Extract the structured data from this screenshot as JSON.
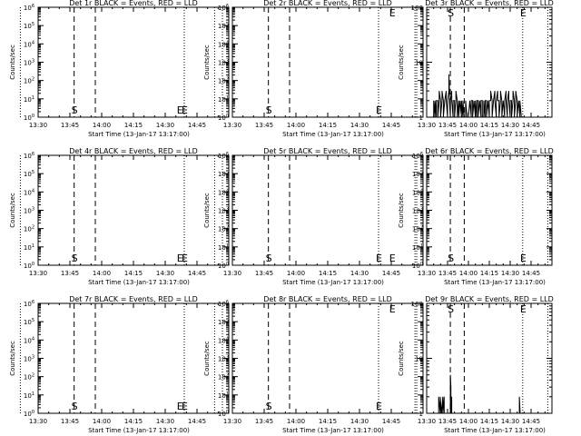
{
  "figure": {
    "background": "#ffffff",
    "foreground": "#000000"
  },
  "chart_data": [
    {
      "type": "line",
      "title": "Det 1r BLACK = Events, RED = LLD",
      "ylabel": "Counts/sec",
      "xlabel": "Start Time (13-Jan-17 13:17:00)",
      "yscale": "log",
      "ylim": [
        1,
        1000000
      ],
      "ytick_labels": [
        "10^0",
        "10^1",
        "10^2",
        "10^3",
        "10^4",
        "10^5",
        "10^6"
      ],
      "xlim_min": [
        13,
        58
      ],
      "xtick_min": [
        30,
        37.5,
        45,
        52.5
      ],
      "xtick_labels": [
        "13:30",
        "13:45",
        "14:00",
        "14:15",
        "14:30",
        "14:45"
      ],
      "dotted_x": [
        8.8,
        47.5,
        56.5
      ],
      "dashed_x": [
        21.5,
        26.5
      ],
      "markers": [
        {
          "text": "E",
          "x": 0.5
        },
        {
          "text": "S",
          "x": 21.5
        },
        {
          "text": "E",
          "x": 47.5
        }
      ],
      "series": []
    },
    {
      "type": "line",
      "title": "Det 2r BLACK = Events, RED = LLD",
      "ylabel": "Counts/sec",
      "xlabel": "Start Time (13-Jan-17 13:17:00)",
      "yscale": "log",
      "ylim": [
        1,
        1000000
      ],
      "ytick_labels": [
        "10^0",
        "10^1",
        "10^2",
        "10^3",
        "10^4",
        "10^5",
        "10^6"
      ],
      "xlim_min": [
        13,
        58
      ],
      "xtick_min": [
        30,
        37.5,
        45,
        52.5
      ],
      "xtick_labels": [
        "13:30",
        "13:45",
        "14:00",
        "14:15",
        "14:30",
        "14:45"
      ],
      "dotted_x": [
        8.8,
        47.5,
        56.5
      ],
      "dashed_x": [
        21.5,
        26.5
      ],
      "markers": [
        {
          "text": "E",
          "x": 0.5
        },
        {
          "text": "S",
          "x": 21.5
        },
        {
          "text": "E",
          "x": 47.5
        }
      ],
      "series": []
    },
    {
      "type": "line",
      "title": "Det 3r BLACK = Events, RED = LLD",
      "ylabel": "Counts/sec",
      "xlabel": "Start Time (13-Jan-17 13:17:00)",
      "yscale": "log",
      "ylim": [
        1,
        100
      ],
      "ytick_labels": [
        "1",
        "10",
        "100"
      ],
      "xlim_min": [
        13,
        58
      ],
      "xtick_min": [
        30,
        37.5,
        45,
        52.5
      ],
      "xtick_labels": [
        "13:30",
        "13:45",
        "14:00",
        "14:15",
        "14:30",
        "14:45"
      ],
      "dotted_x": [
        8.8,
        47.5,
        56.5
      ],
      "dashed_x": [
        21.5,
        26.5
      ],
      "markers": [
        {
          "text": "E",
          "x": 0.5
        },
        {
          "text": "S",
          "x": 21.5
        },
        {
          "text": "E",
          "x": 47.5
        }
      ],
      "series": [
        {
          "color": "#000000",
          "x": [
            15.5,
            15.5,
            16,
            16,
            16.5,
            16.5,
            17,
            17,
            17.5,
            17.5,
            18,
            18,
            18.5,
            18.5,
            19,
            19,
            19.5,
            19.5,
            20,
            20,
            20.5,
            20.5,
            21,
            21,
            21.2,
            21.2,
            21.5,
            21.5,
            22,
            22,
            22.5,
            22.5,
            23,
            23,
            23.5,
            23.5,
            24,
            24,
            24.5,
            24.5,
            25,
            25,
            25.5,
            25.5,
            26,
            26,
            26.5,
            26.5,
            27,
            27,
            27.5,
            27.5,
            28,
            28,
            28.5,
            28.5,
            29,
            29,
            29.5,
            29.5,
            30,
            30,
            30.5,
            30.5,
            31,
            31,
            31.5,
            31.5,
            32,
            32,
            32.5,
            32.5,
            33,
            33,
            33.5,
            33.5,
            34,
            34,
            34.5,
            34.5,
            35,
            35,
            35.5,
            35.5,
            36,
            36,
            36.5,
            36.5,
            37,
            37,
            37.5,
            37.5,
            38,
            38,
            38.5,
            38.5,
            39,
            39,
            39.5,
            39.5,
            40,
            40,
            40.5,
            40.5,
            41,
            41,
            41.5,
            41.5,
            42,
            42,
            42.5,
            42.5,
            43,
            43,
            43.5,
            43.5,
            44,
            44,
            44.5,
            44.5,
            45,
            45,
            45.5,
            45.5,
            46,
            46,
            46.5,
            46.5,
            47,
            47
          ],
          "y": [
            1,
            2,
            1,
            2,
            1,
            2,
            2,
            1,
            2,
            3,
            2,
            1,
            2,
            3,
            2,
            1,
            2,
            2,
            3,
            2,
            1,
            2,
            3,
            6,
            3,
            2,
            1,
            2,
            3,
            2,
            1,
            2,
            2,
            1,
            2,
            3,
            2,
            1,
            2,
            1,
            2,
            2,
            1,
            2,
            1,
            2,
            1,
            1,
            1,
            2,
            1,
            1,
            1,
            1,
            2,
            2,
            1,
            2,
            2,
            1,
            2,
            2,
            1,
            2,
            1,
            2,
            2,
            1,
            2,
            2,
            1,
            2,
            2,
            1,
            1,
            2,
            1,
            2,
            2,
            1,
            2,
            2,
            1,
            2,
            2,
            3,
            2,
            1,
            2,
            2,
            3,
            2,
            1,
            2,
            3,
            2,
            2,
            1,
            2,
            3,
            2,
            1,
            2,
            2,
            1,
            2,
            3,
            2,
            1,
            2,
            3,
            2,
            1,
            2,
            2,
            1,
            2,
            3,
            2,
            1,
            2,
            3,
            2,
            1,
            2,
            2,
            1,
            2,
            1,
            1
          ]
        }
      ]
    },
    {
      "type": "line",
      "title": "Det 4r BLACK = Events, RED = LLD",
      "ylabel": "Counts/sec",
      "xlabel": "Start Time (13-Jan-17 13:17:00)",
      "yscale": "log",
      "ylim": [
        1,
        1000000
      ],
      "ytick_labels": [
        "10^0",
        "10^1",
        "10^2",
        "10^3",
        "10^4",
        "10^5",
        "10^6"
      ],
      "xlim_min": [
        13,
        58
      ],
      "xtick_min": [
        30,
        37.5,
        45,
        52.5
      ],
      "xtick_labels": [
        "13:30",
        "13:45",
        "14:00",
        "14:15",
        "14:30",
        "14:45"
      ],
      "dotted_x": [
        8.8,
        47.5,
        56.5
      ],
      "dashed_x": [
        21.5,
        26.5
      ],
      "markers": [
        {
          "text": "E",
          "x": 0.5
        },
        {
          "text": "S",
          "x": 21.5
        },
        {
          "text": "E",
          "x": 47.5
        }
      ],
      "series": []
    },
    {
      "type": "line",
      "title": "Det 5r BLACK = Events, RED = LLD",
      "ylabel": "Counts/sec",
      "xlabel": "Start Time (13-Jan-17 13:17:00)",
      "yscale": "log",
      "ylim": [
        1,
        1000000
      ],
      "ytick_labels": [
        "10^0",
        "10^1",
        "10^2",
        "10^3",
        "10^4",
        "10^5",
        "10^6"
      ],
      "xlim_min": [
        13,
        58
      ],
      "xtick_min": [
        30,
        37.5,
        45,
        52.5
      ],
      "xtick_labels": [
        "13:30",
        "13:45",
        "14:00",
        "14:15",
        "14:30",
        "14:45"
      ],
      "dotted_x": [
        8.8,
        47.5,
        56.5
      ],
      "dashed_x": [
        21.5,
        26.5
      ],
      "markers": [
        {
          "text": "E",
          "x": 0.5
        },
        {
          "text": "S",
          "x": 21.5
        },
        {
          "text": "E",
          "x": 47.5
        }
      ],
      "series": []
    },
    {
      "type": "line",
      "title": "Det 6r BLACK = Events, RED = LLD",
      "ylabel": "Counts/sec",
      "xlabel": "Start Time (13-Jan-17 13:17:00)",
      "yscale": "log",
      "ylim": [
        1,
        1000000
      ],
      "ytick_labels": [
        "10^0",
        "10^1",
        "10^2",
        "10^3",
        "10^4",
        "10^5",
        "10^6"
      ],
      "xlim_min": [
        13,
        58
      ],
      "xtick_min": [
        30,
        37.5,
        45,
        52.5
      ],
      "xtick_labels": [
        "13:30",
        "13:45",
        "14:00",
        "14:15",
        "14:30",
        "14:45"
      ],
      "dotted_x": [
        8.8,
        47.5,
        56.5
      ],
      "dashed_x": [
        21.5,
        26.5
      ],
      "markers": [
        {
          "text": "E",
          "x": 0.5
        },
        {
          "text": "S",
          "x": 21.5
        },
        {
          "text": "E",
          "x": 47.5
        }
      ],
      "series": []
    },
    {
      "type": "line",
      "title": "Det 7r BLACK = Events, RED = LLD",
      "ylabel": "Counts/sec",
      "xlabel": "Start Time (13-Jan-17 13:17:00)",
      "yscale": "log",
      "ylim": [
        1,
        1000000
      ],
      "ytick_labels": [
        "10^0",
        "10^1",
        "10^2",
        "10^3",
        "10^4",
        "10^5",
        "10^6"
      ],
      "xlim_min": [
        13,
        58
      ],
      "xtick_min": [
        30,
        37.5,
        45,
        52.5
      ],
      "xtick_labels": [
        "13:30",
        "13:45",
        "14:00",
        "14:15",
        "14:30",
        "14:45"
      ],
      "dotted_x": [
        8.8,
        47.5,
        56.5
      ],
      "dashed_x": [
        21.5,
        26.5
      ],
      "markers": [
        {
          "text": "E",
          "x": 0.5
        },
        {
          "text": "S",
          "x": 21.5
        },
        {
          "text": "E",
          "x": 47.5
        }
      ],
      "series": []
    },
    {
      "type": "line",
      "title": "Det 8r BLACK = Events, RED = LLD",
      "ylabel": "Counts/sec",
      "xlabel": "Start Time (13-Jan-17 13:17:00)",
      "yscale": "log",
      "ylim": [
        1,
        1000000
      ],
      "ytick_labels": [
        "10^0",
        "10^1",
        "10^2",
        "10^3",
        "10^4",
        "10^5",
        "10^6"
      ],
      "xlim_min": [
        13,
        58
      ],
      "xtick_min": [
        30,
        37.5,
        45,
        52.5
      ],
      "xtick_labels": [
        "13:30",
        "13:45",
        "14:00",
        "14:15",
        "14:30",
        "14:45"
      ],
      "dotted_x": [
        8.8,
        47.5,
        56.5
      ],
      "dashed_x": [
        21.5,
        26.5
      ],
      "markers": [
        {
          "text": "E",
          "x": 0.5
        },
        {
          "text": "S",
          "x": 21.5
        },
        {
          "text": "E",
          "x": 47.5
        }
      ],
      "series": []
    },
    {
      "type": "line",
      "title": "Det 9r BLACK = Events, RED = LLD",
      "ylabel": "Counts/sec",
      "xlabel": "Start Time (13-Jan-17 13:17:00)",
      "yscale": "log",
      "ylim": [
        1,
        100
      ],
      "ytick_labels": [
        "1",
        "10",
        "100"
      ],
      "xlim_min": [
        13,
        58
      ],
      "xtick_min": [
        30,
        37.5,
        45,
        52.5
      ],
      "xtick_labels": [
        "13:30",
        "13:45",
        "14:00",
        "14:15",
        "14:30",
        "14:45"
      ],
      "dotted_x": [
        8.8,
        47.5,
        56.5
      ],
      "dashed_x": [
        21.5,
        26.5
      ],
      "markers": [
        {
          "text": "E",
          "x": 0.5
        },
        {
          "text": "S",
          "x": 21.5
        },
        {
          "text": "E",
          "x": 47.5
        }
      ],
      "series": [
        {
          "color": "#000000",
          "x": [
            17.3,
            17.3,
            17.9,
            17.9,
            18.3,
            18.3,
            18.8,
            18.8,
            19.3,
            19.3,
            21.5,
            21.5,
            21.7,
            21.7,
            22,
            22,
            46.3,
            46.3,
            46.6,
            46.6
          ],
          "y": [
            1,
            2,
            1,
            2,
            1,
            1,
            2,
            1,
            2,
            1,
            1,
            5,
            3,
            1,
            2,
            1,
            1,
            2,
            1,
            1
          ]
        }
      ]
    }
  ]
}
